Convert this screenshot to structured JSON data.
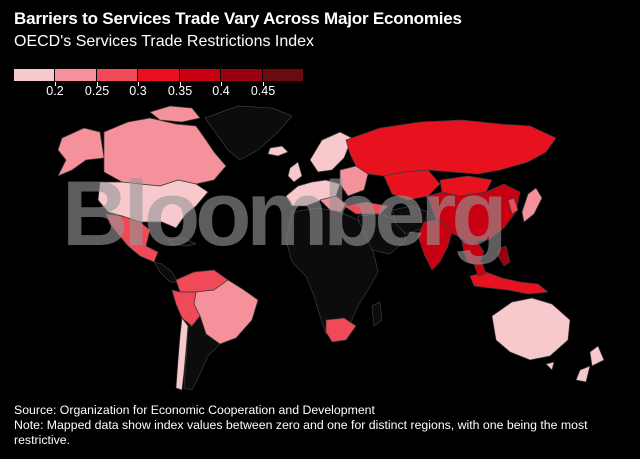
{
  "title": "Barriers to Services Trade Vary Across Major Economies",
  "subtitle": "OECD's Services Trade Restrictions Index",
  "legend": {
    "labels": [
      "0.2",
      "0.25",
      "0.3",
      "0.35",
      "0.4",
      "0.45"
    ],
    "colors": [
      "#f7c9cc",
      "#f4919a",
      "#f04a58",
      "#e8121f",
      "#c90012",
      "#9a0010",
      "#6b0a10"
    ]
  },
  "watermark": "Bloomberg",
  "source": "Source: Organization for Economic Cooperation and Development",
  "note": "Note: Mapped data show index values between zero and one for distinct regions, with one being the most restrictive.",
  "colors": {
    "no_data": "#0c0c0c",
    "border": "#3a3a3a"
  }
}
